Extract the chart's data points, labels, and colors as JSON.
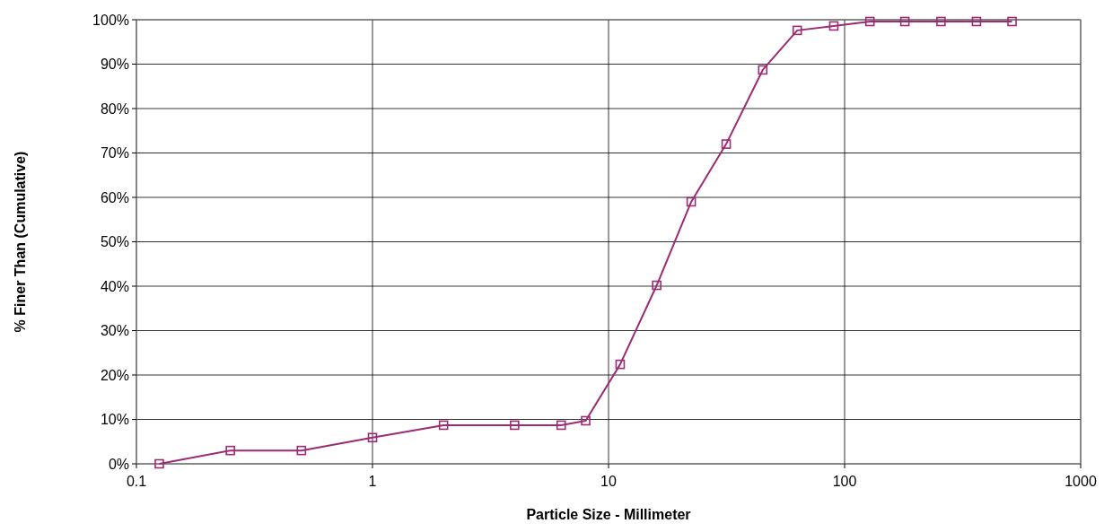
{
  "chart_data": {
    "type": "line",
    "xlabel": "Particle Size - Millimeter",
    "ylabel": "% Finer Than (Cumulative)",
    "x": [
      0.125,
      0.25,
      0.5,
      1,
      2,
      4,
      6.3,
      8,
      11.2,
      16,
      22.4,
      31.5,
      45,
      63,
      90,
      128,
      180,
      256,
      362,
      512
    ],
    "series": [
      {
        "color": "#9c2b73",
        "values": [
          0,
          3,
          3,
          5.9,
          8.7,
          8.7,
          8.7,
          9.7,
          22.4,
          40.2,
          59,
          72,
          88.7,
          97.6,
          98.6,
          99.6,
          99.6,
          99.6,
          99.6,
          99.6
        ]
      }
    ],
    "log": "x",
    "xlim": [
      0.1,
      1000
    ],
    "xticks": [
      0.1,
      1,
      10,
      100,
      1000
    ],
    "ylim": [
      0,
      100
    ],
    "yticks": [
      {
        "value": 0,
        "label": "0%"
      },
      {
        "value": 10,
        "label": "10%"
      },
      {
        "value": 20,
        "label": "20%"
      },
      {
        "value": 30,
        "label": "30%"
      },
      {
        "value": 40,
        "label": "40%"
      },
      {
        "value": 50,
        "label": "50%"
      },
      {
        "value": 60,
        "label": "60%"
      },
      {
        "value": 70,
        "label": "70%"
      },
      {
        "value": 80,
        "label": "80%"
      },
      {
        "value": 90,
        "label": "90%"
      },
      {
        "value": 100,
        "label": "100%"
      }
    ],
    "grid": true,
    "marker": "square",
    "line_style": "solid"
  }
}
